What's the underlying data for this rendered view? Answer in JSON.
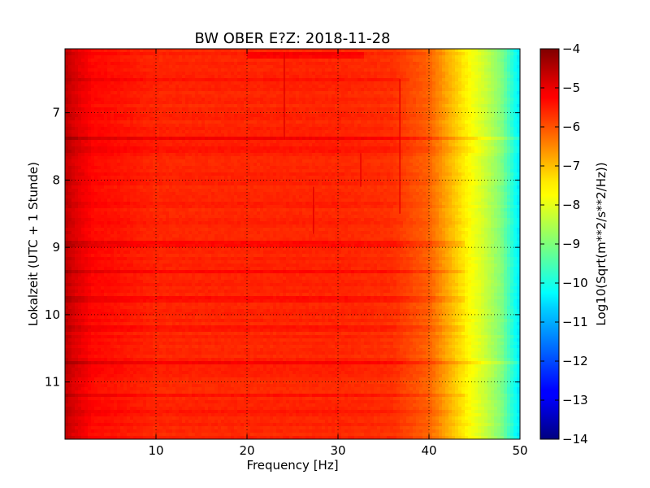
{
  "chart_data": {
    "type": "heatmap",
    "title": "BW OBER E?Z: 2018-11-28",
    "xlabel": "Frequency [Hz]",
    "ylabel": "Lokalzeit (UTC + 1 Stunde)",
    "xlim": [
      0,
      50
    ],
    "ylim": [
      11.85,
      6.05
    ],
    "x_ticks": [
      10,
      20,
      30,
      40,
      50
    ],
    "y_ticks": [
      7,
      8,
      9,
      10,
      11
    ],
    "grid": true,
    "colorbar": {
      "label": "Log10(Sqrt(m**2/s**2/Hz))",
      "range": [
        -14,
        -4
      ],
      "ticks": [
        -4,
        -5,
        -6,
        -7,
        -8,
        -9,
        -10,
        -11,
        -12,
        -13,
        -14
      ],
      "colormap": "jet"
    },
    "value_profile": {
      "frequency_hz": [
        0,
        1,
        3,
        10,
        20,
        30,
        36,
        40,
        42,
        44,
        46,
        48,
        50
      ],
      "log10_amplitude": [
        -4.6,
        -4.9,
        -5.3,
        -5.6,
        -5.6,
        -5.6,
        -5.7,
        -6.2,
        -6.9,
        -7.6,
        -8.2,
        -9.0,
        -10.5
      ]
    },
    "bands": [
      {
        "time_hour": 6.15,
        "freq_range": [
          20,
          33
        ],
        "delta": 0.35
      },
      {
        "time_hour": 6.5,
        "freq_range": [
          0,
          38
        ],
        "delta": 0.2
      },
      {
        "time_hour": 7.38,
        "freq_range": [
          0,
          50
        ],
        "delta": 0.45
      },
      {
        "time_hour": 7.55,
        "freq_range": [
          0,
          50
        ],
        "delta": 0.2
      },
      {
        "time_hour": 8.35,
        "freq_range": [
          0,
          40
        ],
        "delta": 0.15
      },
      {
        "time_hour": 8.95,
        "freq_range": [
          0,
          44
        ],
        "delta": 0.3
      },
      {
        "time_hour": 9.35,
        "freq_range": [
          0,
          44
        ],
        "delta": 0.3
      },
      {
        "time_hour": 9.78,
        "freq_range": [
          0,
          44
        ],
        "delta": 0.25
      },
      {
        "time_hour": 10.2,
        "freq_range": [
          0,
          44
        ],
        "delta": 0.2
      },
      {
        "time_hour": 10.72,
        "freq_range": [
          0,
          50
        ],
        "delta": 0.35
      },
      {
        "time_hour": 11.2,
        "freq_range": [
          0,
          44
        ],
        "delta": 0.2
      },
      {
        "time_hour": 11.45,
        "freq_range": [
          0,
          44
        ],
        "delta": 0.2
      }
    ],
    "spikes": [
      {
        "freq_hz": 24.1,
        "time_range": [
          6.1,
          7.4
        ],
        "delta": 0.35
      },
      {
        "freq_hz": 36.8,
        "time_range": [
          6.5,
          8.5
        ],
        "delta": 0.45
      },
      {
        "freq_hz": 27.3,
        "time_range": [
          8.1,
          8.8
        ],
        "delta": 0.3
      },
      {
        "freq_hz": 32.5,
        "time_range": [
          7.6,
          8.1
        ],
        "delta": 0.3
      }
    ]
  }
}
